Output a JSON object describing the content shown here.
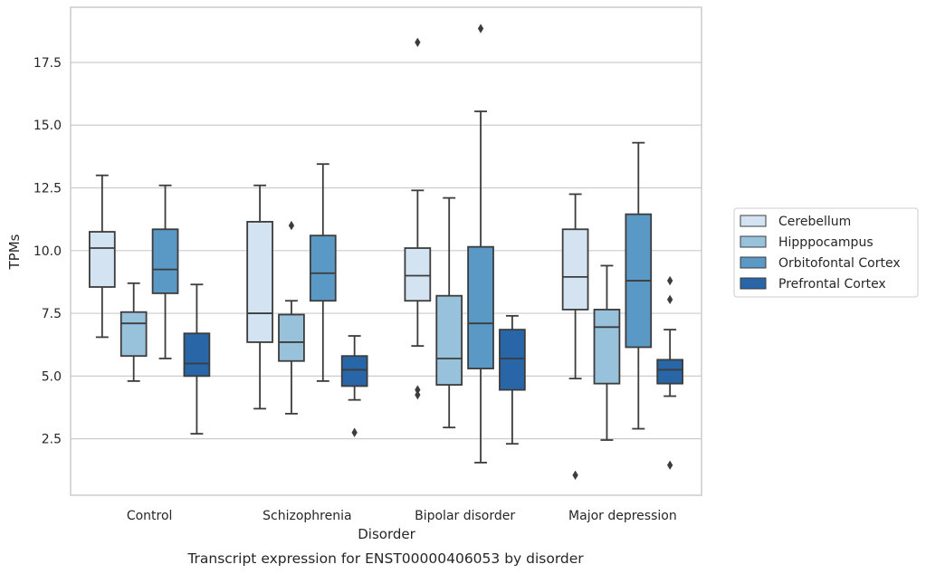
{
  "chart_data": {
    "type": "box",
    "categories": [
      "Control",
      "Schizophrenia",
      "Bipolar disorder",
      "Major depression"
    ],
    "xlabel": "Disorder",
    "ylabel": "TPMs",
    "ylim": [
      0.25,
      19.7
    ],
    "yticks": [
      "2.5",
      "5.0",
      "7.5",
      "10.0",
      "12.5",
      "15.0",
      "17.5"
    ],
    "grid": "horizontal",
    "legend_position": "right",
    "caption": "Transcript expression for ENST00000406053 by disorder",
    "series": [
      {
        "name": "Cerebellum",
        "color": "#d4e3f2",
        "boxes": [
          {
            "whislo": 6.55,
            "q1": 8.55,
            "med": 10.1,
            "q3": 10.75,
            "whishi": 13.0,
            "fliers": []
          },
          {
            "whislo": 3.7,
            "q1": 6.35,
            "med": 7.5,
            "q3": 11.15,
            "whishi": 12.6,
            "fliers": []
          },
          {
            "whislo": 6.2,
            "q1": 8.0,
            "med": 9.0,
            "q3": 10.1,
            "whishi": 12.4,
            "fliers": [
              18.3,
              4.45,
              4.25
            ]
          },
          {
            "whislo": 4.9,
            "q1": 7.65,
            "med": 8.95,
            "q3": 10.85,
            "whishi": 12.25,
            "fliers": [
              1.05
            ]
          }
        ]
      },
      {
        "name": "Hipppocampus",
        "color": "#98c1db",
        "boxes": [
          {
            "whislo": 4.8,
            "q1": 5.8,
            "med": 7.1,
            "q3": 7.55,
            "whishi": 8.7,
            "fliers": []
          },
          {
            "whislo": 3.5,
            "q1": 5.6,
            "med": 6.35,
            "q3": 7.45,
            "whishi": 8.0,
            "fliers": [
              11.0
            ]
          },
          {
            "whislo": 2.95,
            "q1": 4.65,
            "med": 5.7,
            "q3": 8.2,
            "whishi": 12.1,
            "fliers": []
          },
          {
            "whislo": 2.45,
            "q1": 4.7,
            "med": 6.95,
            "q3": 7.65,
            "whishi": 9.4,
            "fliers": []
          }
        ]
      },
      {
        "name": "Orbitofontal Cortex",
        "color": "#5a99c5",
        "boxes": [
          {
            "whislo": 5.7,
            "q1": 8.3,
            "med": 9.25,
            "q3": 10.85,
            "whishi": 12.6,
            "fliers": []
          },
          {
            "whislo": 4.8,
            "q1": 8.0,
            "med": 9.1,
            "q3": 10.6,
            "whishi": 13.45,
            "fliers": []
          },
          {
            "whislo": 1.55,
            "q1": 5.3,
            "med": 7.1,
            "q3": 10.15,
            "whishi": 15.55,
            "fliers": [
              18.85
            ]
          },
          {
            "whislo": 2.9,
            "q1": 6.15,
            "med": 8.8,
            "q3": 11.45,
            "whishi": 14.3,
            "fliers": []
          }
        ]
      },
      {
        "name": "Prefrontal Cortex",
        "color": "#2866a7",
        "boxes": [
          {
            "whislo": 2.7,
            "q1": 5.0,
            "med": 5.5,
            "q3": 6.7,
            "whishi": 8.65,
            "fliers": []
          },
          {
            "whislo": 4.05,
            "q1": 4.6,
            "med": 5.25,
            "q3": 5.8,
            "whishi": 6.6,
            "fliers": [
              2.75
            ]
          },
          {
            "whislo": 2.3,
            "q1": 4.45,
            "med": 5.7,
            "q3": 6.85,
            "whishi": 7.4,
            "fliers": []
          },
          {
            "whislo": 4.2,
            "q1": 4.7,
            "med": 5.25,
            "q3": 5.65,
            "whishi": 6.85,
            "fliers": [
              8.8,
              8.05,
              1.45
            ]
          }
        ]
      }
    ]
  }
}
